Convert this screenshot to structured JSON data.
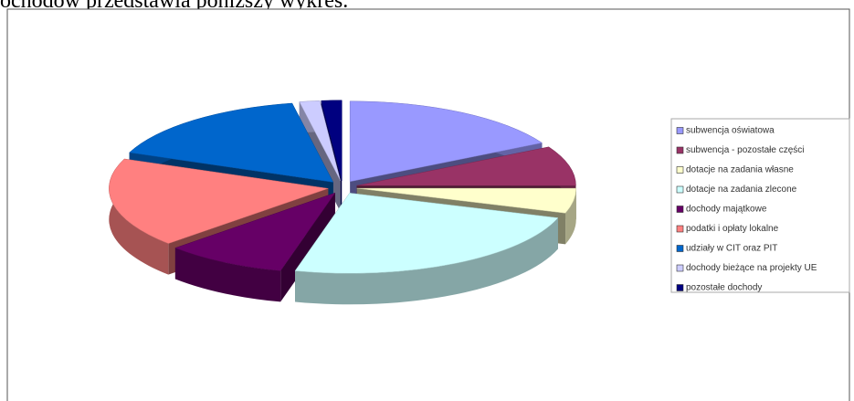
{
  "header": {
    "text": "ochodów przedstawia poniższy wykres."
  },
  "chart_data": {
    "type": "pie",
    "categories": [
      "subwencja oświatowa",
      "subwencja - pozostałe części",
      "dotacje na zadania własne",
      "dotacje na zadania zlecone",
      "dochody majątkowe",
      "podatki i opłaty lokalne",
      "udziały w CIT oraz PIT",
      "dochody bieżące na projekty UE",
      "pozostałe dochody"
    ],
    "values": [
      17,
      8,
      5,
      24,
      9,
      18,
      16,
      1.5,
      1.5
    ],
    "colors": [
      "#9999ff",
      "#993366",
      "#ffffcc",
      "#ccffff",
      "#660066",
      "#ff8080",
      "#0066cc",
      "#ccccff",
      "#000080"
    ],
    "legend": "right"
  }
}
